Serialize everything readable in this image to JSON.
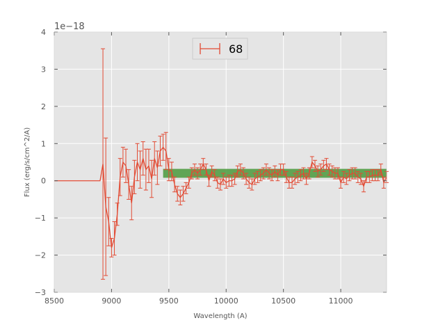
{
  "chart_data": {
    "type": "line",
    "title": "",
    "xlabel": "Wavelength (A)",
    "ylabel": "Flux (erg/s/cm^2/A)",
    "y_offset_label": "1e−18",
    "xlim": [
      8500,
      11400
    ],
    "ylim": [
      -3,
      4
    ],
    "x_ticks": [
      8500,
      9000,
      9500,
      10000,
      10500,
      11000
    ],
    "y_ticks": [
      -3,
      -2,
      -1,
      0,
      1,
      2,
      3,
      4
    ],
    "y_tick_labels": [
      "−3",
      "−2",
      "−1",
      "0",
      "1",
      "2",
      "3",
      "4"
    ],
    "grid": true,
    "legend": {
      "placement": "top-center",
      "entries": [
        "68"
      ]
    },
    "colors": {
      "series": "#e24a33",
      "band": "#4a9a3c",
      "plot_bg": "#e5e5e5",
      "grid": "#ffffff"
    },
    "band": {
      "x_start": 9450,
      "x_end": 11400,
      "y_low": 0.08,
      "y_high": 0.32
    },
    "series": [
      {
        "name": "68",
        "x": [
          8500,
          8550,
          8600,
          8650,
          8700,
          8750,
          8800,
          8850,
          8900,
          8925,
          8950,
          8975,
          9000,
          9025,
          9050,
          9075,
          9100,
          9125,
          9150,
          9175,
          9200,
          9225,
          9250,
          9275,
          9300,
          9325,
          9350,
          9375,
          9400,
          9425,
          9450,
          9475,
          9500,
          9525,
          9550,
          9575,
          9600,
          9625,
          9650,
          9675,
          9700,
          9725,
          9750,
          9775,
          9800,
          9825,
          9850,
          9875,
          9900,
          9925,
          9950,
          9975,
          10000,
          10025,
          10050,
          10075,
          10100,
          10125,
          10150,
          10175,
          10200,
          10225,
          10250,
          10275,
          10300,
          10325,
          10350,
          10375,
          10400,
          10425,
          10450,
          10475,
          10500,
          10525,
          10550,
          10575,
          10600,
          10625,
          10650,
          10675,
          10700,
          10725,
          10750,
          10775,
          10800,
          10825,
          10850,
          10875,
          10900,
          10925,
          10950,
          10975,
          11000,
          11025,
          11050,
          11075,
          11100,
          11125,
          11150,
          11175,
          11200,
          11225,
          11250,
          11275,
          11300,
          11325,
          11350,
          11375,
          11400
        ],
        "y": [
          0,
          0,
          0,
          0,
          0,
          0,
          0,
          0,
          0,
          0.45,
          -0.7,
          -1.1,
          -1.8,
          -1.55,
          -0.9,
          0.1,
          0.5,
          0.4,
          -0.1,
          -0.6,
          0.1,
          0.5,
          0.3,
          0.6,
          0.3,
          0.4,
          0.05,
          0.6,
          0.35,
          0.8,
          0.9,
          0.8,
          0.3,
          0.25,
          -0.1,
          -0.35,
          -0.45,
          -0.35,
          -0.2,
          -0.05,
          0.2,
          0.3,
          0.2,
          0.3,
          0.45,
          0.3,
          0.0,
          0.25,
          0.15,
          -0.05,
          -0.1,
          0.05,
          -0.05,
          0.0,
          0.0,
          0.05,
          0.25,
          0.3,
          0.2,
          0.05,
          -0.05,
          -0.1,
          0.05,
          0.1,
          0.15,
          0.2,
          0.3,
          0.2,
          0.15,
          0.25,
          0.15,
          0.3,
          0.3,
          0.1,
          -0.05,
          -0.05,
          0.05,
          0.1,
          0.15,
          0.2,
          0.05,
          0.2,
          0.5,
          0.4,
          0.25,
          0.3,
          0.4,
          0.45,
          0.3,
          0.25,
          0.2,
          0.2,
          -0.05,
          0.1,
          0.05,
          0.15,
          0.2,
          0.2,
          0.1,
          0.05,
          -0.15,
          0.1,
          0.1,
          0.15,
          0.15,
          0.15,
          0.3,
          -0.05,
          0.1
        ],
        "yerr": [
          0,
          0,
          0,
          0,
          0,
          0,
          0,
          0,
          0,
          3.1,
          1.85,
          0.65,
          0.25,
          0.45,
          0.3,
          0.5,
          0.4,
          0.45,
          0.4,
          0.45,
          0.45,
          0.5,
          0.5,
          0.45,
          0.55,
          0.45,
          0.5,
          0.45,
          0.45,
          0.4,
          0.35,
          0.5,
          0.3,
          0.25,
          0.2,
          0.2,
          0.2,
          0.2,
          0.15,
          0.15,
          0.15,
          0.15,
          0.15,
          0.15,
          0.15,
          0.15,
          0.15,
          0.15,
          0.15,
          0.15,
          0.15,
          0.15,
          0.15,
          0.15,
          0.15,
          0.15,
          0.15,
          0.15,
          0.15,
          0.15,
          0.15,
          0.15,
          0.15,
          0.15,
          0.15,
          0.15,
          0.15,
          0.15,
          0.15,
          0.15,
          0.15,
          0.15,
          0.15,
          0.15,
          0.15,
          0.15,
          0.15,
          0.15,
          0.15,
          0.15,
          0.15,
          0.15,
          0.15,
          0.15,
          0.15,
          0.15,
          0.15,
          0.15,
          0.15,
          0.15,
          0.15,
          0.15,
          0.15,
          0.15,
          0.15,
          0.15,
          0.15,
          0.15,
          0.15,
          0.15,
          0.15,
          0.15,
          0.15,
          0.15,
          0.15,
          0.15,
          0.15,
          0.15,
          0.15
        ]
      }
    ]
  }
}
